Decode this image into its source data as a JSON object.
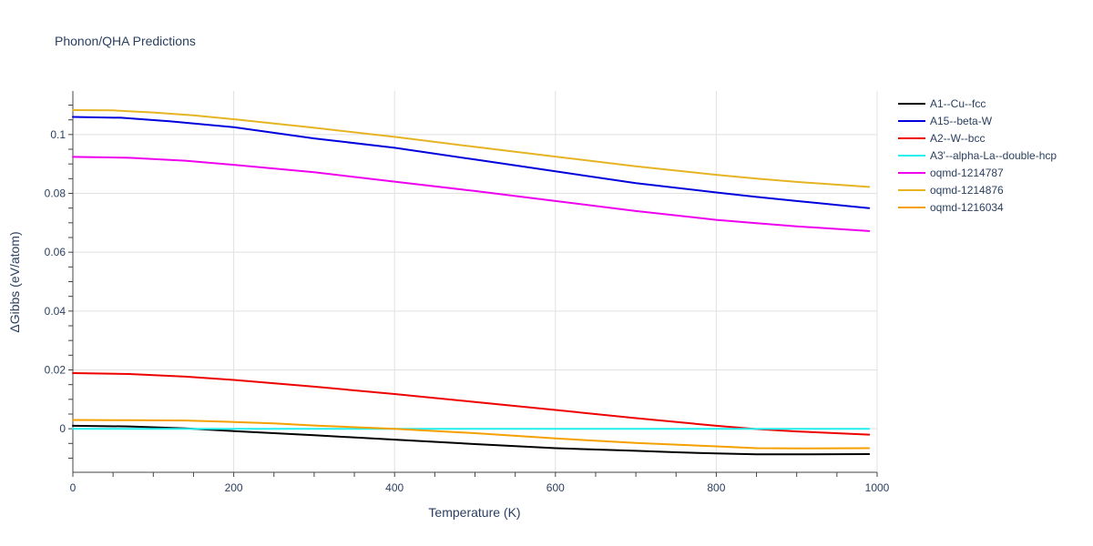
{
  "chart_data": {
    "type": "line",
    "title": "Phonon/QHA Predictions",
    "xlabel": "Temperature (K)",
    "ylabel": "ΔGibbs (eV/atom)",
    "xlim": [
      0,
      1000
    ],
    "ylim": [
      -0.0148,
      0.1148
    ],
    "xticks": [
      0,
      200,
      400,
      600,
      800,
      1000
    ],
    "xtick_labels": [
      "0",
      "200",
      "400",
      "600",
      "800",
      "1000"
    ],
    "yticks": [
      0,
      0.02,
      0.04,
      0.06,
      0.08,
      0.1
    ],
    "ytick_labels": [
      "0",
      "0.02",
      "0.04",
      "0.06",
      "0.08",
      "0.1"
    ],
    "grid": true,
    "legend_position": "right",
    "series": [
      {
        "name": "A1--Cu--fcc",
        "color": "#000000",
        "x": [
          0,
          70,
          140,
          200,
          300,
          400,
          500,
          600,
          700,
          750,
          800,
          850,
          900,
          990
        ],
        "y": [
          0.001,
          0.0008,
          0.0001,
          -0.0008,
          -0.0022,
          -0.0037,
          -0.0052,
          -0.0066,
          -0.0075,
          -0.008,
          -0.0084,
          -0.0087,
          -0.0087,
          -0.0086
        ]
      },
      {
        "name": "A15--beta-W",
        "color": "#0000dd",
        "x": [
          0,
          60,
          120,
          200,
          300,
          400,
          500,
          600,
          700,
          800,
          850,
          900,
          990
        ],
        "y": [
          0.106,
          0.1057,
          0.1045,
          0.1025,
          0.0987,
          0.0955,
          0.0915,
          0.0875,
          0.0835,
          0.0803,
          0.0788,
          0.0774,
          0.075
        ]
      },
      {
        "name": "A2--W--bcc",
        "color": "#ee0000",
        "x": [
          0,
          70,
          140,
          200,
          300,
          400,
          500,
          600,
          700,
          800,
          850,
          900,
          990
        ],
        "y": [
          0.0189,
          0.0186,
          0.0177,
          0.0166,
          0.0143,
          0.0118,
          0.0091,
          0.0064,
          0.0036,
          0.001,
          -0.0001,
          -0.0009,
          -0.002
        ]
      },
      {
        "name": "A3'--alpha-La--double-hcp",
        "color": "#22eeee",
        "x": [
          0,
          200,
          400,
          600,
          800,
          990
        ],
        "y": [
          0,
          0,
          0,
          0,
          0,
          0
        ]
      },
      {
        "name": "oqmd-1214787",
        "color": "#ee00ee",
        "x": [
          0,
          70,
          140,
          200,
          300,
          400,
          500,
          600,
          700,
          800,
          850,
          900,
          990
        ],
        "y": [
          0.0924,
          0.0921,
          0.0911,
          0.0897,
          0.0872,
          0.084,
          0.0808,
          0.0774,
          0.074,
          0.071,
          0.0699,
          0.0688,
          0.0672
        ]
      },
      {
        "name": "oqmd-1214876",
        "color": "#e6b422",
        "x": [
          0,
          50,
          100,
          150,
          200,
          300,
          400,
          500,
          600,
          700,
          800,
          850,
          900,
          990
        ],
        "y": [
          0.1083,
          0.1082,
          0.1075,
          0.1065,
          0.1052,
          0.1023,
          0.0992,
          0.0958,
          0.0925,
          0.0892,
          0.0863,
          0.085,
          0.0839,
          0.0822
        ]
      },
      {
        "name": "oqmd-1216034",
        "color": "#f5a000",
        "x": [
          0,
          70,
          140,
          200,
          250,
          300,
          400,
          500,
          600,
          700,
          800,
          850,
          900,
          990
        ],
        "y": [
          0.003,
          0.0029,
          0.0028,
          0.0023,
          0.0018,
          0.0011,
          0.0,
          -0.0015,
          -0.0033,
          -0.0048,
          -0.006,
          -0.0066,
          -0.0067,
          -0.0066
        ]
      }
    ]
  }
}
